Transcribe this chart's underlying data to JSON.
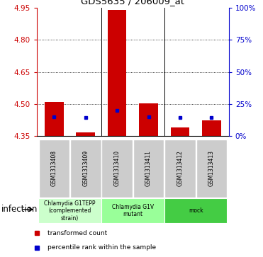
{
  "title": "GDS5635 / 206009_at",
  "samples": [
    "GSM1313408",
    "GSM1313409",
    "GSM1313410",
    "GSM1313411",
    "GSM1313412",
    "GSM1313413"
  ],
  "red_bar_top": [
    4.511,
    4.368,
    4.941,
    4.502,
    4.39,
    4.425
  ],
  "blue_sq_y": [
    4.44,
    4.437,
    4.47,
    4.441,
    4.437,
    4.437
  ],
  "bar_baseline": 4.35,
  "ylim_left": [
    4.35,
    4.95
  ],
  "yticks_left": [
    4.35,
    4.5,
    4.65,
    4.8,
    4.95
  ],
  "yticks_right": [
    0,
    25,
    50,
    75,
    100
  ],
  "ylim_right": [
    0,
    100
  ],
  "left_color": "#cc0000",
  "right_color": "#0000cc",
  "bar_color": "#cc0000",
  "blue_color": "#0000cc",
  "sample_box_color": "#cccccc",
  "group_info": [
    {
      "spans": [
        0,
        1
      ],
      "color": "#ccffcc",
      "label": "Chlamydia G1TEPP\n(complemented\nstrain)"
    },
    {
      "spans": [
        2,
        3
      ],
      "color": "#99ff99",
      "label": "Chlamydia G1V\nmutant"
    },
    {
      "spans": [
        4,
        5
      ],
      "color": "#44cc44",
      "label": "mock"
    }
  ],
  "infection_label": "infection",
  "legend_red": "transformed count",
  "legend_blue": "percentile rank within the sample"
}
